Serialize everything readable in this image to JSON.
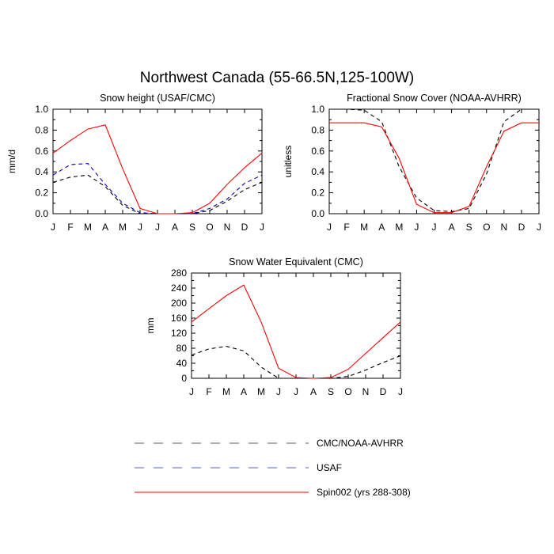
{
  "title": "Northwest Canada (55-66.5N,125-100W)",
  "months": [
    "J",
    "F",
    "M",
    "A",
    "M",
    "J",
    "J",
    "A",
    "S",
    "O",
    "N",
    "D",
    "J"
  ],
  "legend": [
    {
      "label": "CMC/NOAA-AVHRR",
      "color": "#000000",
      "dash": "dashed"
    },
    {
      "label": "USAF",
      "color": "#0000cc",
      "dash": "dashed"
    },
    {
      "label": "Spin002 (yrs 288-308)",
      "color": "#ff0000",
      "dash": "solid"
    }
  ],
  "chart_data": [
    {
      "type": "line",
      "title": "Snow height (USAF/CMC)",
      "ylabel": "mm/d",
      "ylim": [
        0,
        1.0
      ],
      "yticks": [
        "0.0",
        "0.2",
        "0.4",
        "0.6",
        "0.8",
        "1.0"
      ],
      "ytick_values": [
        0,
        0.2,
        0.4,
        0.6,
        0.8,
        1.0
      ],
      "series": [
        {
          "name": "CMC/NOAA-AVHRR",
          "color": "#000000",
          "dash": true,
          "values": [
            0.3,
            0.35,
            0.37,
            0.26,
            0.08,
            0.0,
            0.0,
            0.0,
            0.0,
            0.03,
            0.12,
            0.23,
            0.3
          ]
        },
        {
          "name": "USAF",
          "color": "#0000cc",
          "dash": true,
          "values": [
            0.37,
            0.47,
            0.48,
            0.28,
            0.1,
            0.01,
            0.0,
            0.0,
            0.0,
            0.05,
            0.14,
            0.29,
            0.37
          ]
        },
        {
          "name": "Spin002 (yrs 288-308)",
          "color": "#ff0000",
          "dash": false,
          "values": [
            0.58,
            0.7,
            0.81,
            0.85,
            0.43,
            0.05,
            0.0,
            0.0,
            0.01,
            0.1,
            0.28,
            0.44,
            0.58
          ]
        }
      ]
    },
    {
      "type": "line",
      "title": "Fractional Snow Cover (NOAA-AVHRR)",
      "ylabel": "unitless",
      "ylim": [
        0,
        1.0
      ],
      "yticks": [
        "0.0",
        "0.2",
        "0.4",
        "0.6",
        "0.8",
        "1.0"
      ],
      "ytick_values": [
        0,
        0.2,
        0.4,
        0.6,
        0.8,
        1.0
      ],
      "series": [
        {
          "name": "CMC/NOAA-AVHRR",
          "color": "#000000",
          "dash": true,
          "values": [
            1.0,
            1.0,
            0.99,
            0.88,
            0.45,
            0.15,
            0.03,
            0.02,
            0.05,
            0.38,
            0.88,
            1.0,
            1.0
          ]
        },
        {
          "name": "Spin002 (yrs 288-308)",
          "color": "#ff0000",
          "dash": false,
          "values": [
            0.87,
            0.87,
            0.87,
            0.83,
            0.53,
            0.09,
            0.01,
            0.01,
            0.07,
            0.45,
            0.79,
            0.87,
            0.87
          ]
        }
      ]
    },
    {
      "type": "line",
      "title": "Snow Water Equivalent (CMC)",
      "ylabel": "mm",
      "ylim": [
        0,
        280
      ],
      "yticks": [
        "0",
        "40",
        "80",
        "120",
        "160",
        "200",
        "240",
        "280"
      ],
      "ytick_values": [
        0,
        40,
        80,
        120,
        160,
        200,
        240,
        280
      ],
      "series": [
        {
          "name": "CMC/NOAA-AVHRR",
          "color": "#000000",
          "dash": true,
          "values": [
            62,
            78,
            85,
            73,
            30,
            0,
            0,
            0,
            0,
            5,
            22,
            42,
            60
          ]
        },
        {
          "name": "Spin002 (yrs 288-308)",
          "color": "#ff0000",
          "dash": false,
          "values": [
            150,
            185,
            220,
            248,
            150,
            27,
            2,
            0,
            2,
            24,
            66,
            108,
            150
          ]
        }
      ]
    }
  ]
}
